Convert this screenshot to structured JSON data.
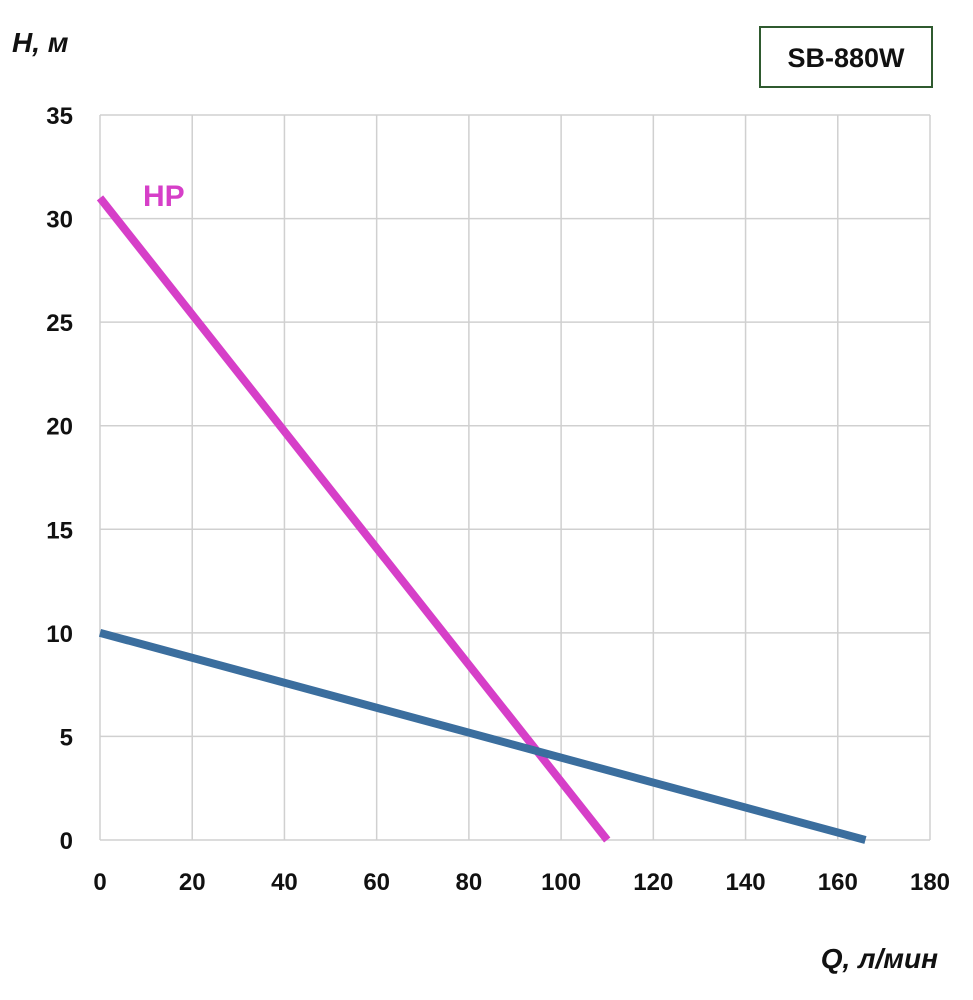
{
  "chart_data": {
    "type": "line",
    "title": "SB-880W",
    "xlabel": "Q, л/мин",
    "ylabel": "H, м",
    "xlim": [
      0,
      180
    ],
    "ylim": [
      0,
      35
    ],
    "xticks": [
      0,
      20,
      40,
      60,
      80,
      100,
      120,
      140,
      160,
      180
    ],
    "yticks": [
      0,
      5,
      10,
      15,
      20,
      25,
      30,
      35
    ],
    "grid": true,
    "series": [
      {
        "name": "HP",
        "color": "#d63fc8",
        "x": [
          0,
          110
        ],
        "y": [
          31,
          0
        ]
      },
      {
        "color": "#3b6e9e",
        "x": [
          0,
          166
        ],
        "y": [
          10,
          0
        ]
      }
    ]
  }
}
